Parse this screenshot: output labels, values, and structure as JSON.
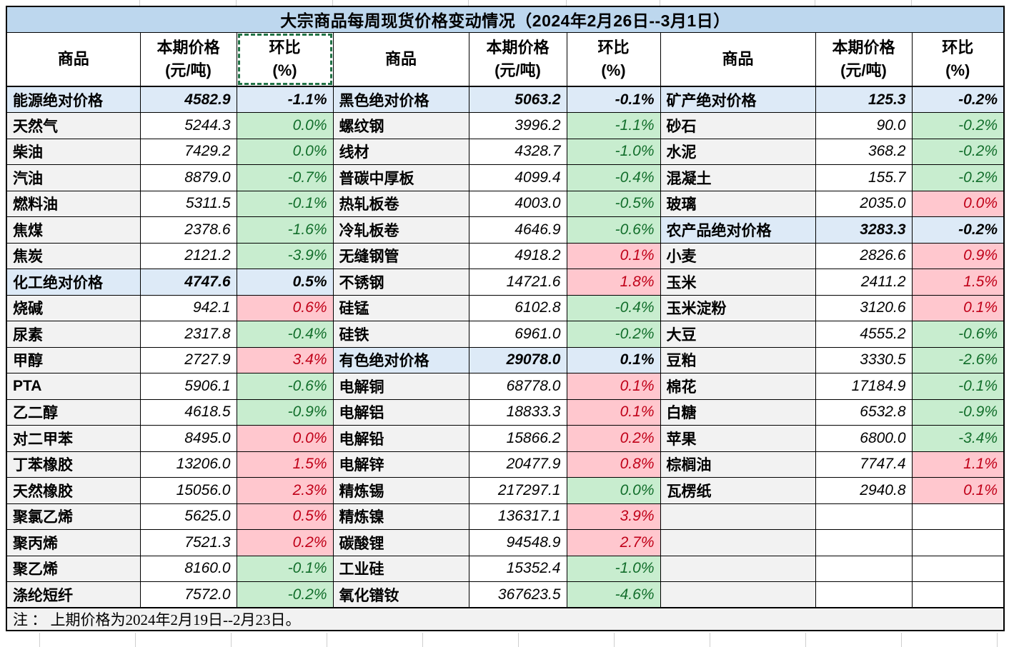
{
  "title": "大宗商品每周现货价格变动情况（2024年2月26日--3月1日）",
  "note": "注 ： 上期价格为2024年2月19日--2月23日。",
  "header": {
    "commodity": "商品",
    "price_line1": "本期价格",
    "price_line2": "(元/吨)",
    "pct_line1": "环比",
    "pct_line2": "(%)"
  },
  "colors": {
    "title_bg": "#bdd7ee",
    "summary_row_bg": "#ddeaf7",
    "name_cell_bg": "#f2f2f2",
    "increase_bg": "#ffc7ce",
    "increase_text": "#c00018",
    "decrease_bg": "#c8edcf",
    "decrease_text": "#126e2b",
    "border": "#000000",
    "selection_marquee": "#217346",
    "note_bg": "#f2f2f2"
  },
  "groups": [
    {
      "rows": [
        {
          "name": "能源绝对价格",
          "price": "4582.9",
          "pct": "-1.1%",
          "type": "summary"
        },
        {
          "name": "天然气",
          "price": "5244.3",
          "pct": "0.0%",
          "type": "down"
        },
        {
          "name": "柴油",
          "price": "7429.2",
          "pct": "0.0%",
          "type": "down"
        },
        {
          "name": "汽油",
          "price": "8879.0",
          "pct": "-0.7%",
          "type": "down"
        },
        {
          "name": "燃料油",
          "price": "5311.5",
          "pct": "-0.1%",
          "type": "down"
        },
        {
          "name": "焦煤",
          "price": "2378.6",
          "pct": "-1.6%",
          "type": "down"
        },
        {
          "name": "焦炭",
          "price": "2121.2",
          "pct": "-3.9%",
          "type": "down"
        },
        {
          "name": "化工绝对价格",
          "price": "4747.6",
          "pct": "0.5%",
          "type": "summary"
        },
        {
          "name": "烧碱",
          "price": "942.1",
          "pct": "0.6%",
          "type": "up"
        },
        {
          "name": "尿素",
          "price": "2317.8",
          "pct": "-0.4%",
          "type": "down"
        },
        {
          "name": "甲醇",
          "price": "2727.9",
          "pct": "3.4%",
          "type": "up"
        },
        {
          "name": "PTA",
          "price": "5906.1",
          "pct": "-0.6%",
          "type": "down"
        },
        {
          "name": "乙二醇",
          "price": "4618.5",
          "pct": "-0.9%",
          "type": "down"
        },
        {
          "name": "对二甲苯",
          "price": "8495.0",
          "pct": "0.0%",
          "type": "up"
        },
        {
          "name": "丁苯橡胶",
          "price": "13206.0",
          "pct": "1.5%",
          "type": "up"
        },
        {
          "name": "天然橡胶",
          "price": "15056.0",
          "pct": "2.3%",
          "type": "up"
        },
        {
          "name": "聚氯乙烯",
          "price": "5625.0",
          "pct": "0.5%",
          "type": "up"
        },
        {
          "name": "聚丙烯",
          "price": "7521.3",
          "pct": "0.2%",
          "type": "up"
        },
        {
          "name": "聚乙烯",
          "price": "8160.0",
          "pct": "-0.1%",
          "type": "down"
        },
        {
          "name": "涤纶短纤",
          "price": "7572.0",
          "pct": "-0.2%",
          "type": "down"
        }
      ]
    },
    {
      "rows": [
        {
          "name": "黑色绝对价格",
          "price": "5063.2",
          "pct": "-0.1%",
          "type": "summary"
        },
        {
          "name": "螺纹钢",
          "price": "3996.2",
          "pct": "-1.1%",
          "type": "down"
        },
        {
          "name": "线材",
          "price": "4328.7",
          "pct": "-1.0%",
          "type": "down"
        },
        {
          "name": "普碳中厚板",
          "price": "4099.4",
          "pct": "-0.4%",
          "type": "down"
        },
        {
          "name": "热轧板卷",
          "price": "4003.0",
          "pct": "-0.5%",
          "type": "down"
        },
        {
          "name": "冷轧板卷",
          "price": "4646.9",
          "pct": "-0.6%",
          "type": "down"
        },
        {
          "name": "无缝钢管",
          "price": "4918.2",
          "pct": "0.1%",
          "type": "up"
        },
        {
          "name": "不锈钢",
          "price": "14721.6",
          "pct": "1.8%",
          "type": "up"
        },
        {
          "name": "硅锰",
          "price": "6102.8",
          "pct": "-0.4%",
          "type": "down"
        },
        {
          "name": "硅铁",
          "price": "6961.0",
          "pct": "-0.2%",
          "type": "down"
        },
        {
          "name": "有色绝对价格",
          "price": "29078.0",
          "pct": "0.1%",
          "type": "summary"
        },
        {
          "name": "电解铜",
          "price": "68778.0",
          "pct": "0.1%",
          "type": "up"
        },
        {
          "name": "电解铝",
          "price": "18833.3",
          "pct": "0.1%",
          "type": "up"
        },
        {
          "name": "电解铅",
          "price": "15866.2",
          "pct": "0.2%",
          "type": "up"
        },
        {
          "name": "电解锌",
          "price": "20477.9",
          "pct": "0.8%",
          "type": "up"
        },
        {
          "name": "精炼锡",
          "price": "217297.1",
          "pct": "0.0%",
          "type": "down"
        },
        {
          "name": "精炼镍",
          "price": "136317.1",
          "pct": "3.9%",
          "type": "up"
        },
        {
          "name": "碳酸锂",
          "price": "94548.9",
          "pct": "2.7%",
          "type": "up"
        },
        {
          "name": "工业硅",
          "price": "15352.4",
          "pct": "-1.0%",
          "type": "down"
        },
        {
          "name": "氧化镨钕",
          "price": "367623.5",
          "pct": "-4.6%",
          "type": "down"
        }
      ]
    },
    {
      "rows": [
        {
          "name": "矿产绝对价格",
          "price": "125.3",
          "pct": "-0.2%",
          "type": "summary"
        },
        {
          "name": "砂石",
          "price": "90.0",
          "pct": "-0.2%",
          "type": "down"
        },
        {
          "name": "水泥",
          "price": "368.2",
          "pct": "-0.2%",
          "type": "down"
        },
        {
          "name": "混凝土",
          "price": "155.7",
          "pct": "-0.2%",
          "type": "down"
        },
        {
          "name": "玻璃",
          "price": "2035.0",
          "pct": "0.0%",
          "type": "up"
        },
        {
          "name": "农产品绝对价格",
          "price": "3283.3",
          "pct": "-0.2%",
          "type": "summary"
        },
        {
          "name": "小麦",
          "price": "2826.6",
          "pct": "0.9%",
          "type": "up"
        },
        {
          "name": "玉米",
          "price": "2411.2",
          "pct": "1.5%",
          "type": "up"
        },
        {
          "name": "玉米淀粉",
          "price": "3120.6",
          "pct": "0.1%",
          "type": "up"
        },
        {
          "name": "大豆",
          "price": "4555.2",
          "pct": "-0.6%",
          "type": "down"
        },
        {
          "name": "豆粕",
          "price": "3330.5",
          "pct": "-2.6%",
          "type": "down"
        },
        {
          "name": "棉花",
          "price": "17184.9",
          "pct": "-0.1%",
          "type": "down"
        },
        {
          "name": "白糖",
          "price": "6532.8",
          "pct": "-0.9%",
          "type": "down"
        },
        {
          "name": "苹果",
          "price": "6800.0",
          "pct": "-3.4%",
          "type": "down"
        },
        {
          "name": "棕榈油",
          "price": "7747.4",
          "pct": "1.1%",
          "type": "up"
        },
        {
          "name": "瓦楞纸",
          "price": "2940.8",
          "pct": "0.1%",
          "type": "up"
        },
        {
          "type": "empty"
        },
        {
          "type": "empty"
        },
        {
          "type": "empty"
        },
        {
          "type": "empty"
        }
      ]
    }
  ]
}
